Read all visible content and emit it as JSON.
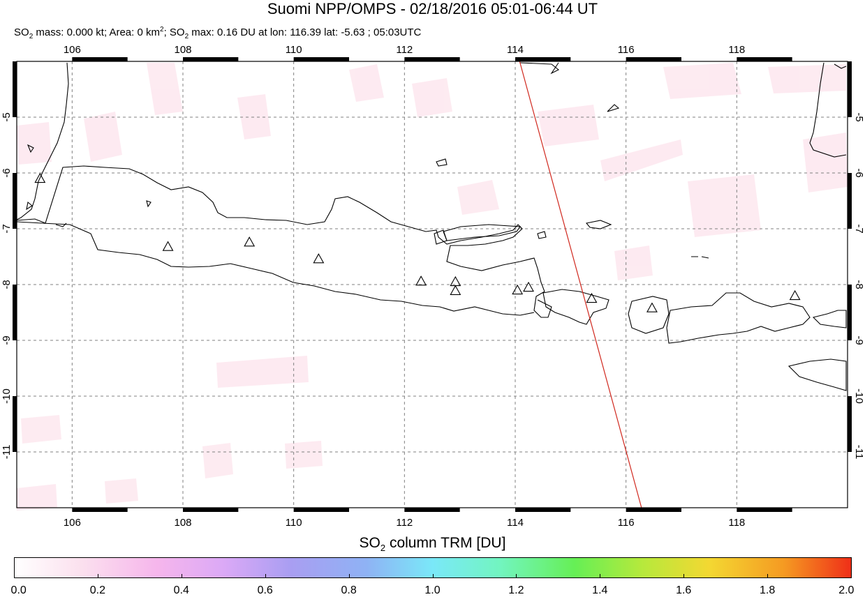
{
  "title": "Suomi NPP/OMPS - 02/18/2016 05:01-06:44 UT",
  "subtitle": {
    "so2_mass_prefix": "SO",
    "so2_mass_text": " mass: 0.000 kt; Area: 0 km",
    "area_sup": "2",
    "so2_max_prefix": "; SO",
    "so2_max_text": " max: 0.16 DU at lon: 116.39 lat: -5.63 ; 05:03UTC",
    "sub2": "2"
  },
  "map": {
    "lon_ticks": [
      "106",
      "108",
      "110",
      "112",
      "114",
      "116",
      "118"
    ],
    "lat_ticks": [
      "-5",
      "-6",
      "-7",
      "-8",
      "-9",
      "-10",
      "-11"
    ],
    "lon_range": [
      105,
      120
    ],
    "lat_range": [
      -12,
      -4
    ],
    "volcanoes": [
      {
        "lon": 105.42,
        "lat": -6.1
      },
      {
        "lon": 107.73,
        "lat": -7.32
      },
      {
        "lon": 109.2,
        "lat": -7.24
      },
      {
        "lon": 110.45,
        "lat": -7.54
      },
      {
        "lon": 112.3,
        "lat": -7.94
      },
      {
        "lon": 112.92,
        "lat": -7.95
      },
      {
        "lon": 112.92,
        "lat": -8.11
      },
      {
        "lon": 114.04,
        "lat": -8.1
      },
      {
        "lon": 114.24,
        "lat": -8.05
      },
      {
        "lon": 115.38,
        "lat": -8.25
      },
      {
        "lon": 116.47,
        "lat": -8.42
      },
      {
        "lon": 119.05,
        "lat": -8.2
      }
    ],
    "orbit_track": {
      "start": {
        "lon": 114.08,
        "lat": -4.0
      },
      "end": {
        "lon": 116.28,
        "lat": -12.0
      },
      "color": "#d0271d"
    }
  },
  "colorbar": {
    "title_prefix": "SO",
    "title_sub": "2",
    "title_text": " column TRM [DU]",
    "labels": [
      "0.0",
      "0.2",
      "0.4",
      "0.6",
      "0.8",
      "1.0",
      "1.2",
      "1.4",
      "1.6",
      "1.8",
      "2.0"
    ]
  }
}
